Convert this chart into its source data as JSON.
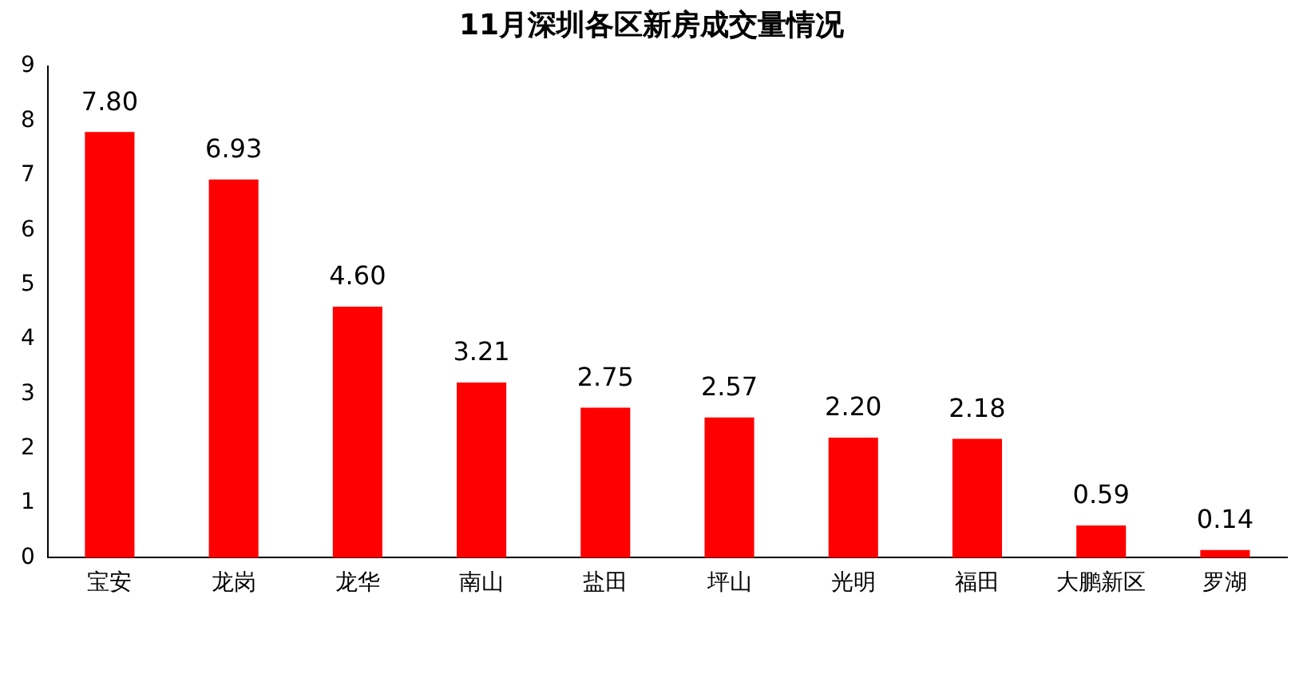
{
  "chart_data": {
    "type": "bar",
    "title": "11月深圳各区新房成交量情况",
    "categories": [
      "宝安",
      "龙岗",
      "龙华",
      "南山",
      "盐田",
      "坪山",
      "光明",
      "福田",
      "大鹏新区",
      "罗湖"
    ],
    "values": [
      7.8,
      6.93,
      4.6,
      3.21,
      2.75,
      2.57,
      2.2,
      2.18,
      0.59,
      0.14
    ],
    "value_labels": [
      "7.80",
      "6.93",
      "4.60",
      "3.21",
      "2.75",
      "2.57",
      "2.20",
      "2.18",
      "0.59",
      "0.14"
    ],
    "color": "#ff0000",
    "ylim": [
      0,
      9
    ],
    "yticks": [
      0,
      1,
      2,
      3,
      4,
      5,
      6,
      7,
      8,
      9
    ],
    "grid": false,
    "legend": false
  }
}
